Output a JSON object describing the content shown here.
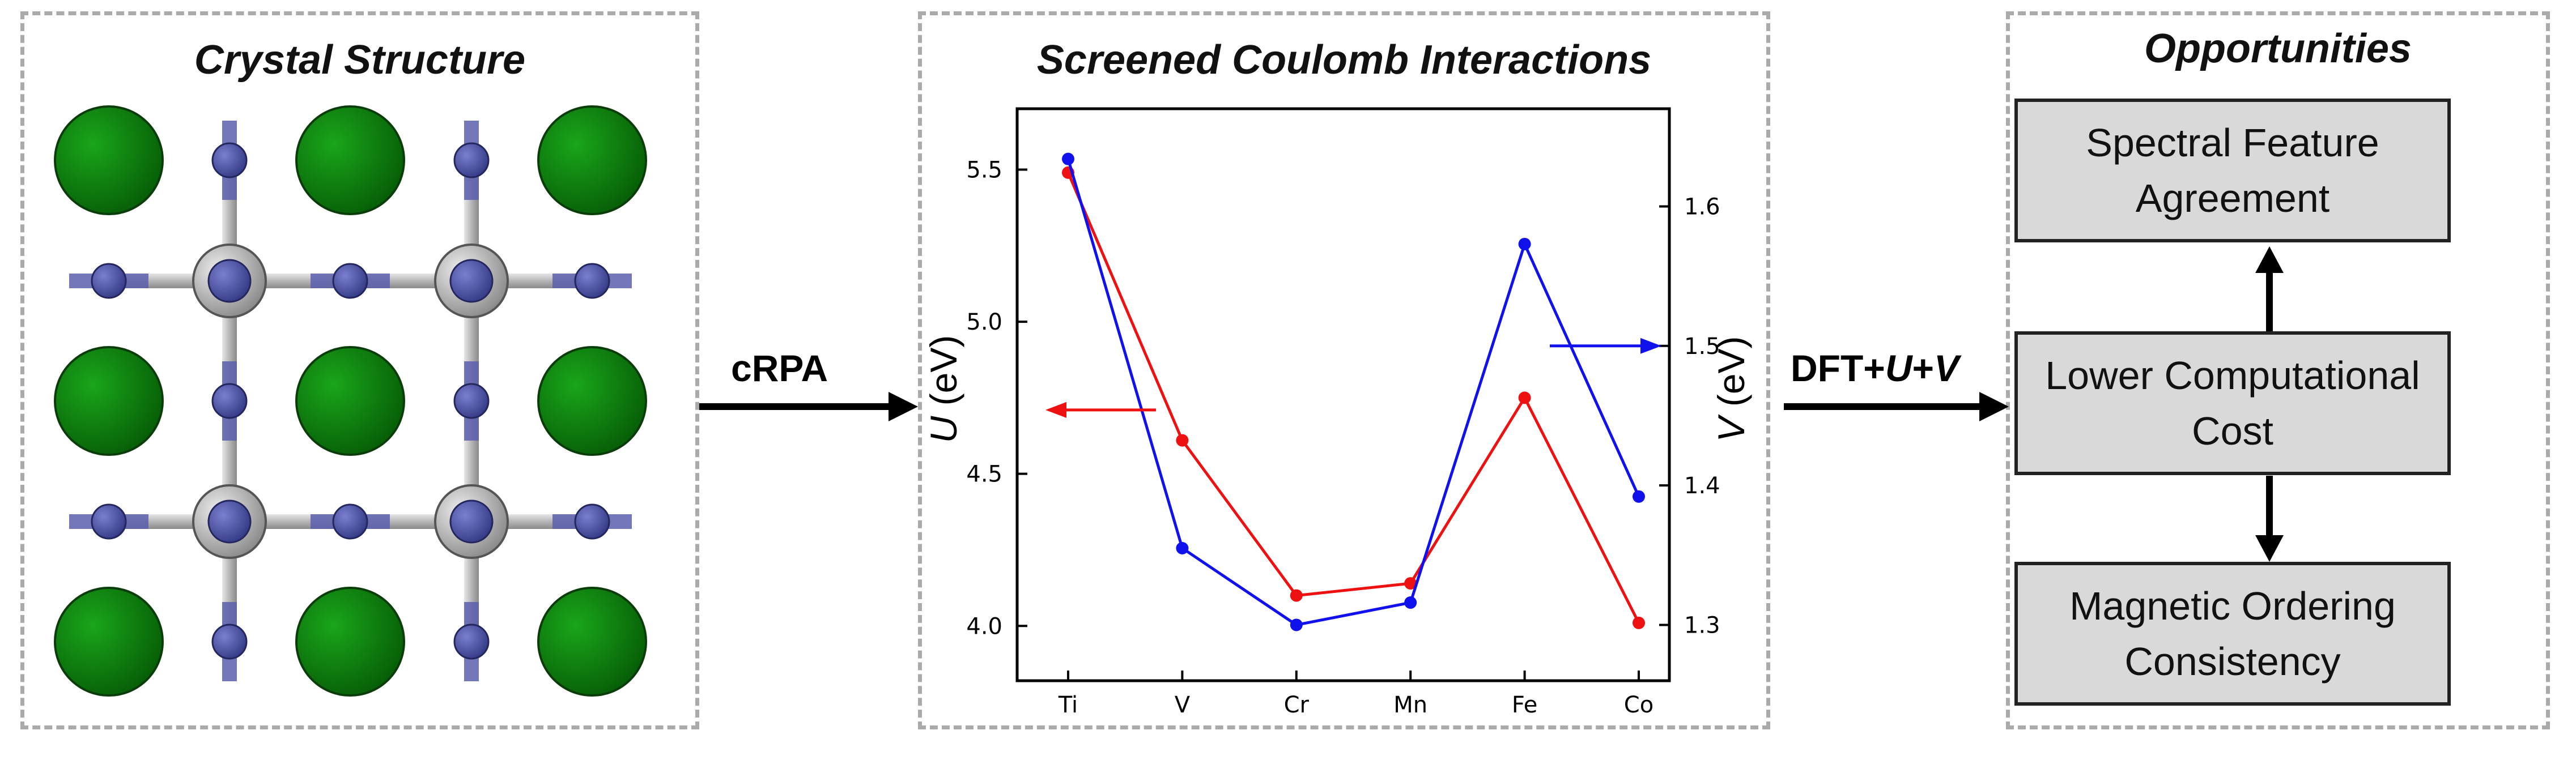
{
  "panels": {
    "crystal": {
      "title": "Crystal Structure"
    },
    "coulomb": {
      "title": "Screened Coulomb Interactions"
    },
    "opportunities": {
      "title": "Opportunities"
    }
  },
  "arrows": {
    "left_label": "cRPA",
    "right_label_prefix": "DFT+",
    "right_label_u": "U",
    "right_label_plus": "+",
    "right_label_v": "V"
  },
  "opportunity_boxes": [
    {
      "text": "Spectral Feature Agreement"
    },
    {
      "text": "Lower Computational Cost"
    },
    {
      "text": "Magnetic Ordering Consistency"
    }
  ],
  "colors": {
    "green_atom": "#0a7a0a",
    "grey_atom": "#a9a9a9",
    "blue_atom": "#4a4f9e",
    "u_series": "#ee1111",
    "v_series": "#1111ee"
  },
  "chart_data": {
    "type": "line",
    "categories": [
      "Ti",
      "V",
      "Cr",
      "Mn",
      "Fe",
      "Co"
    ],
    "ylabel_left_var": "U",
    "ylabel_left_unit": " (eV)",
    "ylabel_right_var": "V",
    "ylabel_right_unit": " (eV)",
    "ylim_left": [
      3.82,
      5.7
    ],
    "ylim_right": [
      1.26,
      1.67
    ],
    "yticks_left": [
      "4.0",
      "4.5",
      "5.0",
      "5.5"
    ],
    "yticks_right": [
      "1.3",
      "1.4",
      "1.5",
      "1.6"
    ],
    "series": [
      {
        "axis": "left",
        "color": "#ee1111",
        "values": [
          5.49,
          4.61,
          4.1,
          4.14,
          4.75,
          4.01
        ]
      },
      {
        "axis": "right",
        "color": "#1111ee",
        "values": [
          1.634,
          1.355,
          1.3,
          1.316,
          1.573,
          1.392
        ]
      }
    ]
  }
}
